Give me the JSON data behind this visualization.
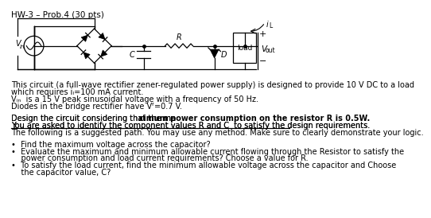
{
  "title": "HW-3 – Prob.4 (30 pts)",
  "bg_color": "#ffffff",
  "text_color": "#000000",
  "line1": "This circuit (a full-wave rectifier zener-regulated power supply) is designed to provide 10 V DC to a load",
  "line2": "which requires iₗ=100 mA current.",
  "line3": "Vᵢₙ  is a 15 V peak sinusoidal voltage with a frequency of 50 Hz.",
  "line4": "Diodes in the bridge rectifier have Vᶠ=0.7 V.",
  "line5_reg": "Design the circuit considering that the ma",
  "line5_bold": "ximum power consumption on the resistor R is 0.5W.",
  "line6": "You are asked to identify the component values R and C  to satisfy the design requirements.",
  "line7": "The following is a suggested path. You may use any method. Make sure to clearly demonstrate your logic.",
  "bullet1": "Find the maximum voltage across the capacitor?",
  "bullet2a": "Evaluate the maximum and minimum allowable current flowing through the Resistor to satisfy the",
  "bullet2b": "power consumption and load current requirements? Choose a value for R.",
  "bullet3a": "To satisfy the load current, find the minimum allowable voltage across the capacitor and Choose",
  "bullet3b": "the capacitor value, C?"
}
